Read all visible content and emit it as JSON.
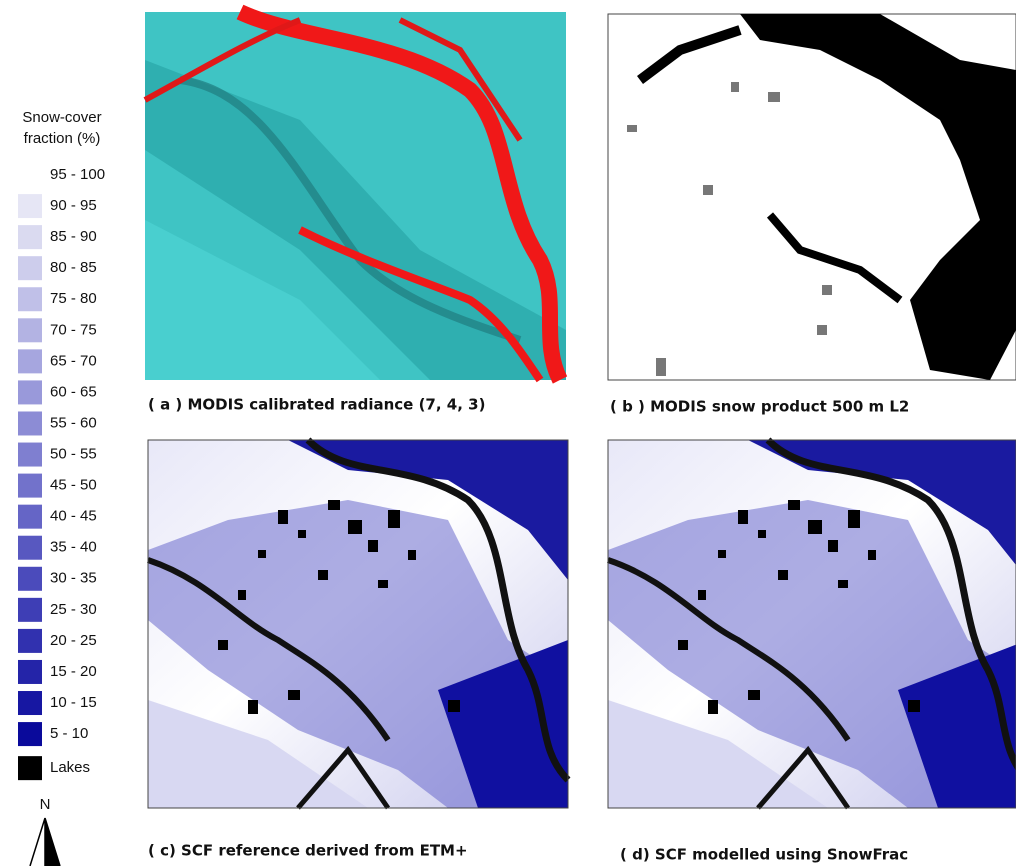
{
  "legend": {
    "title": [
      "Snow-cover",
      "fraction (%)"
    ],
    "items": [
      {
        "label": "95 - 100",
        "color": "#ffffff"
      },
      {
        "label": "90 - 95",
        "color": "#e6e6f5"
      },
      {
        "label": "85 - 90",
        "color": "#dadaf0"
      },
      {
        "label": "80 - 85",
        "color": "#cdcdec"
      },
      {
        "label": "75 - 80",
        "color": "#c0c0e8"
      },
      {
        "label": "70 - 75",
        "color": "#b3b3e3"
      },
      {
        "label": "65 - 70",
        "color": "#a6a6df"
      },
      {
        "label": "60 - 65",
        "color": "#9999da"
      },
      {
        "label": "55 - 60",
        "color": "#8c8cd5"
      },
      {
        "label": "50 - 55",
        "color": "#7f7fd0"
      },
      {
        "label": "45 - 50",
        "color": "#7272cb"
      },
      {
        "label": "40 - 45",
        "color": "#6565c6"
      },
      {
        "label": "35 - 40",
        "color": "#5858c0"
      },
      {
        "label": "30 - 35",
        "color": "#4b4bbb"
      },
      {
        "label": "25 - 30",
        "color": "#3e3eb5"
      },
      {
        "label": "20 - 25",
        "color": "#3131af"
      },
      {
        "label": "15 - 20",
        "color": "#2424a8"
      },
      {
        "label": "10 - 15",
        "color": "#1717a2"
      },
      {
        "label": "5 - 10",
        "color": "#0a0a9b"
      },
      {
        "label": "Lakes",
        "color": "#000000"
      }
    ]
  },
  "north_arrow": "N",
  "panels": [
    {
      "caption": "( a ) MODIS calibrated radiance (7, 4, 3)"
    },
    {
      "caption": "( b ) MODIS snow product 500 m L2"
    },
    {
      "caption": "( c) SCF reference derived from ETM+"
    },
    {
      "caption": "( d) SCF modelled using SnowFrac"
    }
  ]
}
